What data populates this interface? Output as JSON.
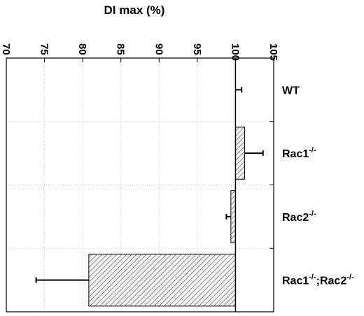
{
  "chart_data": {
    "type": "bar",
    "orientation": "horizontal",
    "title": "DI max (%)",
    "xlabel": "DI max (%)",
    "ylabel": "",
    "xlim": [
      70,
      105
    ],
    "x_ticks": [
      70,
      75,
      80,
      85,
      90,
      95,
      100,
      105
    ],
    "x_tick_labels": [
      "70",
      "75",
      "80",
      "85",
      "90",
      "95",
      "100",
      "105"
    ],
    "x_axis_position": "top",
    "y_axis_position": "right",
    "grid": "dotted",
    "baseline": 100,
    "categories": [
      {
        "base": "WT",
        "sup": ""
      },
      {
        "base": "Rac1",
        "sup": "-/-"
      },
      {
        "base": "Rac2",
        "sup": "-/-"
      },
      {
        "base": "Rac1",
        "sup": "-/-",
        "base2": ";Rac2",
        "sup2": "-/-"
      }
    ],
    "values": [
      100,
      101.2,
      99.4,
      80.8
    ],
    "errors": [
      0.8,
      2.4,
      0.6,
      6.9
    ],
    "bar_fill": "diagonal-hatch",
    "colors": {
      "axis": "#000000",
      "grid": "#c8c8c8",
      "hatch": "#555555",
      "bar_bg": "#f2f2f2"
    }
  }
}
